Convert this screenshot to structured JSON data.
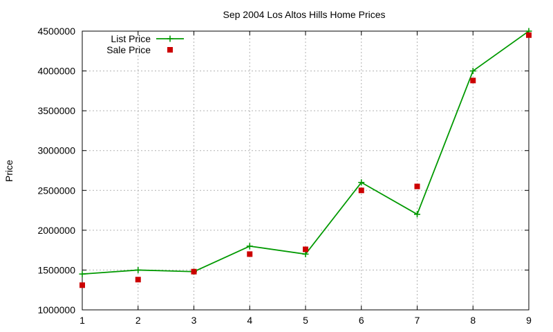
{
  "chart_data": {
    "type": "line",
    "title": "Sep 2004 Los Altos Hills Home Prices",
    "xlabel": "",
    "ylabel": "Price",
    "x": [
      1,
      2,
      3,
      4,
      5,
      6,
      7,
      8,
      9
    ],
    "xlim": [
      1,
      9
    ],
    "ylim": [
      1000000,
      4500000
    ],
    "x_ticks": [
      "1",
      "2",
      "3",
      "4",
      "5",
      "6",
      "7",
      "8",
      "9"
    ],
    "y_ticks": [
      "1000000",
      "1500000",
      "2000000",
      "2500000",
      "3000000",
      "3500000",
      "4000000",
      "4500000"
    ],
    "grid": true,
    "legend_position": "top-left",
    "series": [
      {
        "name": "List Price",
        "style": "line-with-plus-markers",
        "color": "#009900",
        "values": [
          1450000,
          1500000,
          1480000,
          1800000,
          1700000,
          2600000,
          2200000,
          4000000,
          4500000
        ]
      },
      {
        "name": "Sale Price",
        "style": "square-markers",
        "color": "#cc0000",
        "values": [
          1310000,
          1380000,
          1480000,
          1700000,
          1760000,
          2500000,
          2550000,
          3880000,
          4450000
        ]
      }
    ]
  }
}
